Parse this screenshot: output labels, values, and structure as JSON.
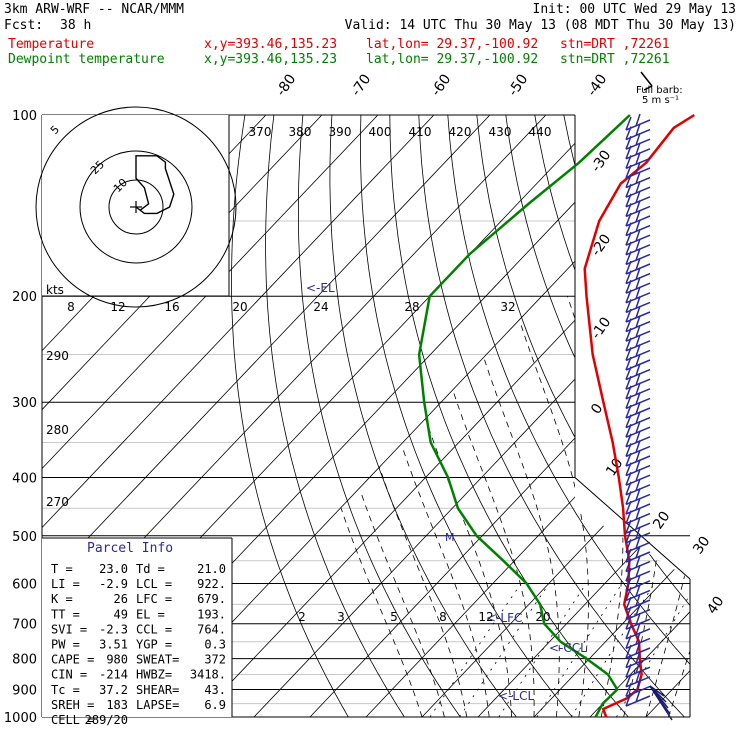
{
  "header": {
    "model": "3km ARW-WRF -- NCAR/MMM",
    "init": "Init: 00 UTC Wed 29 May 13",
    "fcst_label": "Fcst:",
    "fcst_value": "38 h",
    "valid": "Valid: 14 UTC Thu 30 May 13 (08 MDT Thu 30 May 13)",
    "temp_label": "Temperature",
    "dew_label": "Dewpoint temperature",
    "xy": "x,y=393.46,135.23",
    "latlon": "lat,lon= 29.37,-100.92",
    "stn": "stn=DRT ,72261",
    "colors": {
      "temperature": "#e00000",
      "dewpoint": "#008000",
      "barbs": "#2a2a9a"
    }
  },
  "barb_key": {
    "title": "Full barb:",
    "value": "5 m s⁻¹"
  },
  "chart_data": [
    {
      "type": "line",
      "title": "",
      "ylabel": "",
      "pressure_ticks": [
        100,
        200,
        300,
        400,
        500,
        600,
        700,
        800,
        900,
        1000
      ],
      "pressure_range": [
        100,
        1000
      ],
      "isotherm_labels": [
        "-80",
        "-70",
        "-60",
        "-50",
        "-40",
        "-30",
        "-20",
        "-10",
        "0",
        "10",
        "20",
        "30",
        "40"
      ],
      "theta_labels": [
        "370",
        "380",
        "390",
        "400",
        "410",
        "420",
        "430",
        "440"
      ],
      "theta_low_labels": [
        "290",
        "280",
        "270"
      ],
      "mixing_ratio_labels": [
        "2",
        "3",
        "5",
        "8",
        "12",
        "20"
      ],
      "series": [
        {
          "name": "Temperature",
          "points": [
            [
              1000,
              22.9
            ],
            [
              970,
              21.0
            ],
            [
              930,
              23.5
            ],
            [
              900,
              23.8
            ],
            [
              850,
              22.0
            ],
            [
              800,
              19.0
            ],
            [
              750,
              16.0
            ],
            [
              700,
              11.5
            ],
            [
              650,
              7.0
            ],
            [
              600,
              4.2
            ],
            [
              550,
              0.5
            ],
            [
              500,
              -4.5
            ],
            [
              450,
              -9.5
            ],
            [
              400,
              -15.5
            ],
            [
              350,
              -22.5
            ],
            [
              300,
              -31.0
            ],
            [
              250,
              -41.0
            ],
            [
              200,
              -52.0
            ],
            [
              180,
              -57.0
            ],
            [
              150,
              -62.5
            ],
            [
              130,
              -65.0
            ],
            [
              120,
              -64.0
            ],
            [
              105,
              -65.0
            ],
            [
              100,
              -63.5
            ]
          ]
        },
        {
          "name": "Dewpoint temperature",
          "points": [
            [
              1000,
              21.0
            ],
            [
              950,
              20.0
            ],
            [
              900,
              20.2
            ],
            [
              850,
              16.0
            ],
            [
              800,
              9.5
            ],
            [
              750,
              2.0
            ],
            [
              700,
              -4.0
            ],
            [
              650,
              -8.0
            ],
            [
              600,
              -14.0
            ],
            [
              550,
              -22.0
            ],
            [
              500,
              -31.0
            ],
            [
              450,
              -39.0
            ],
            [
              400,
              -46.0
            ],
            [
              350,
              -55.0
            ],
            [
              300,
              -63.0
            ],
            [
              250,
              -72.0
            ],
            [
              200,
              -80.0
            ],
            [
              170,
              -80.0
            ],
            [
              140,
              -78.0
            ],
            [
              120,
              -76.0
            ],
            [
              100,
              -75.0
            ]
          ]
        }
      ],
      "level_markers": [
        "<-EL",
        "<-LFC",
        "<-CCL",
        "<-LCL",
        "M"
      ]
    },
    {
      "type": "scatter",
      "title": "",
      "speed_rings": [
        "5",
        "10",
        "25"
      ],
      "speed_axis_unit": "kts",
      "speed_ticks": [
        "8",
        "12",
        "16",
        "20",
        "24",
        "28",
        "32"
      ],
      "hodograph_points": [
        [
          0,
          0
        ],
        [
          2,
          2
        ],
        [
          5,
          2
        ],
        [
          8,
          0
        ],
        [
          9,
          -4
        ],
        [
          8,
          -8
        ],
        [
          7,
          -12
        ],
        [
          7,
          -14
        ],
        [
          5,
          -16
        ],
        [
          3,
          -16
        ],
        [
          0,
          -16
        ],
        [
          0,
          -13
        ],
        [
          0,
          -9
        ],
        [
          2,
          -6
        ],
        [
          3,
          -1
        ],
        [
          1,
          1
        ]
      ]
    }
  ],
  "parcel": {
    "title": "Parcel Info",
    "rows": [
      [
        "T   =",
        "23.0",
        "Td =",
        "21.0"
      ],
      [
        "LI  =",
        "-2.9",
        "LCL =",
        "922."
      ],
      [
        "K   =",
        "26",
        "LFC =",
        "679."
      ],
      [
        "TT  =",
        "49",
        "EL  =",
        "193."
      ],
      [
        "SVI =",
        "-2.3",
        "CCL =",
        "764."
      ],
      [
        "PW  =",
        "3.51",
        "YGP =",
        "0.3"
      ],
      [
        "CAPE =",
        "980",
        "SWEAT=",
        "372"
      ],
      [
        "CIN  =",
        "-214",
        "HWBZ=",
        "3418."
      ],
      [
        "Tc  =",
        "37.2",
        "SHEAR=",
        "43."
      ],
      [
        "SREH =",
        "183",
        "LAPSE=",
        "6.9"
      ],
      [
        "CELL =",
        "289/20",
        "",
        ""
      ]
    ]
  }
}
